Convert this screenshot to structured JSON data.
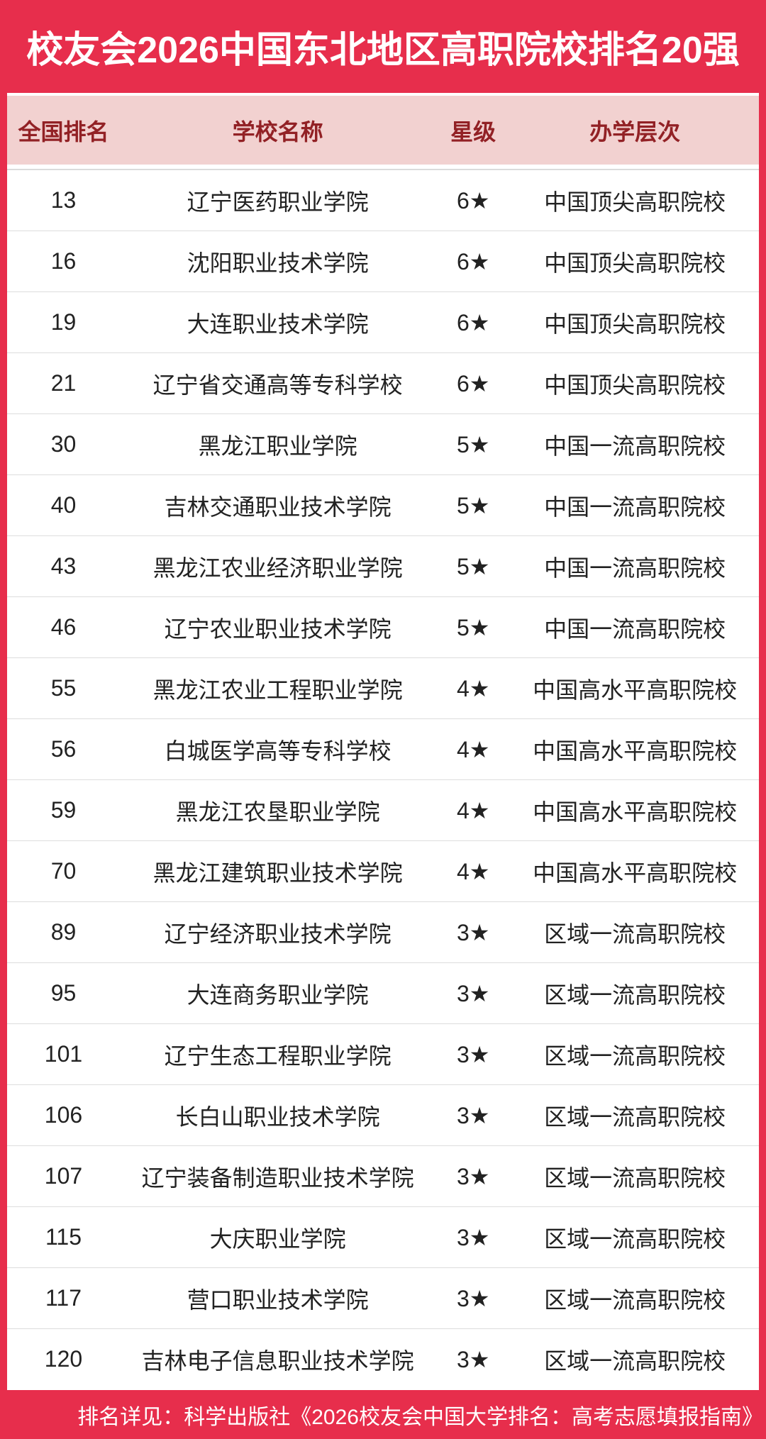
{
  "header": {
    "title": "校友会2026中国东北地区高职院校排名20强"
  },
  "table": {
    "columns": [
      "全国排名",
      "学校名称",
      "星级",
      "办学层次"
    ],
    "rows": [
      {
        "rank": "13",
        "school": "辽宁医药职业学院",
        "star": "6★",
        "level": "中国顶尖高职院校"
      },
      {
        "rank": "16",
        "school": "沈阳职业技术学院",
        "star": "6★",
        "level": "中国顶尖高职院校"
      },
      {
        "rank": "19",
        "school": "大连职业技术学院",
        "star": "6★",
        "level": "中国顶尖高职院校"
      },
      {
        "rank": "21",
        "school": "辽宁省交通高等专科学校",
        "star": "6★",
        "level": "中国顶尖高职院校"
      },
      {
        "rank": "30",
        "school": "黑龙江职业学院",
        "star": "5★",
        "level": "中国一流高职院校"
      },
      {
        "rank": "40",
        "school": "吉林交通职业技术学院",
        "star": "5★",
        "level": "中国一流高职院校"
      },
      {
        "rank": "43",
        "school": "黑龙江农业经济职业学院",
        "star": "5★",
        "level": "中国一流高职院校"
      },
      {
        "rank": "46",
        "school": "辽宁农业职业技术学院",
        "star": "5★",
        "level": "中国一流高职院校"
      },
      {
        "rank": "55",
        "school": "黑龙江农业工程职业学院",
        "star": "4★",
        "level": "中国高水平高职院校"
      },
      {
        "rank": "56",
        "school": "白城医学高等专科学校",
        "star": "4★",
        "level": "中国高水平高职院校"
      },
      {
        "rank": "59",
        "school": "黑龙江农垦职业学院",
        "star": "4★",
        "level": "中国高水平高职院校"
      },
      {
        "rank": "70",
        "school": "黑龙江建筑职业技术学院",
        "star": "4★",
        "level": "中国高水平高职院校"
      },
      {
        "rank": "89",
        "school": "辽宁经济职业技术学院",
        "star": "3★",
        "level": "区域一流高职院校"
      },
      {
        "rank": "95",
        "school": "大连商务职业学院",
        "star": "3★",
        "level": "区域一流高职院校"
      },
      {
        "rank": "101",
        "school": "辽宁生态工程职业学院",
        "star": "3★",
        "level": "区域一流高职院校"
      },
      {
        "rank": "106",
        "school": "长白山职业技术学院",
        "star": "3★",
        "level": "区域一流高职院校"
      },
      {
        "rank": "107",
        "school": "辽宁装备制造职业技术学院",
        "star": "3★",
        "level": "区域一流高职院校"
      },
      {
        "rank": "115",
        "school": "大庆职业学院",
        "star": "3★",
        "level": "区域一流高职院校"
      },
      {
        "rank": "117",
        "school": "营口职业技术学院",
        "star": "3★",
        "level": "区域一流高职院校"
      },
      {
        "rank": "120",
        "school": "吉林电子信息职业技术学院",
        "star": "3★",
        "level": "区域一流高职院校"
      }
    ]
  },
  "footer": {
    "note": "排名详见：科学出版社《2026校友会中国大学排名：高考志愿填报指南》"
  },
  "colors": {
    "primary_red": "#E72E4C",
    "header_pink": "#F2D1D0",
    "header_text_red": "#922125",
    "row_text": "#222222",
    "divider": "#DDDDDD"
  },
  "chart_data": {
    "type": "table",
    "title": "校友会2026中国东北地区高职院校排名20强",
    "columns": [
      "全国排名",
      "学校名称",
      "星级",
      "办学层次"
    ],
    "rows": [
      [
        13,
        "辽宁医药职业学院",
        "6★",
        "中国顶尖高职院校"
      ],
      [
        16,
        "沈阳职业技术学院",
        "6★",
        "中国顶尖高职院校"
      ],
      [
        19,
        "大连职业技术学院",
        "6★",
        "中国顶尖高职院校"
      ],
      [
        21,
        "辽宁省交通高等专科学校",
        "6★",
        "中国顶尖高职院校"
      ],
      [
        30,
        "黑龙江职业学院",
        "5★",
        "中国一流高职院校"
      ],
      [
        40,
        "吉林交通职业技术学院",
        "5★",
        "中国一流高职院校"
      ],
      [
        43,
        "黑龙江农业经济职业学院",
        "5★",
        "中国一流高职院校"
      ],
      [
        46,
        "辽宁农业职业技术学院",
        "5★",
        "中国一流高职院校"
      ],
      [
        55,
        "黑龙江农业工程职业学院",
        "4★",
        "中国高水平高职院校"
      ],
      [
        56,
        "白城医学高等专科学校",
        "4★",
        "中国高水平高职院校"
      ],
      [
        59,
        "黑龙江农垦职业学院",
        "4★",
        "中国高水平高职院校"
      ],
      [
        70,
        "黑龙江建筑职业技术学院",
        "4★",
        "中国高水平高职院校"
      ],
      [
        89,
        "辽宁经济职业技术学院",
        "3★",
        "区域一流高职院校"
      ],
      [
        95,
        "大连商务职业学院",
        "3★",
        "区域一流高职院校"
      ],
      [
        101,
        "辽宁生态工程职业学院",
        "3★",
        "区域一流高职院校"
      ],
      [
        106,
        "长白山职业技术学院",
        "3★",
        "区域一流高职院校"
      ],
      [
        107,
        "辽宁装备制造职业技术学院",
        "3★",
        "区域一流高职院校"
      ],
      [
        115,
        "大庆职业学院",
        "3★",
        "区域一流高职院校"
      ],
      [
        117,
        "营口职业技术学院",
        "3★",
        "区域一流高职院校"
      ],
      [
        120,
        "吉林电子信息职业技术学院",
        "3★",
        "区域一流高职院校"
      ]
    ],
    "footnote": "排名详见：科学出版社《2026校友会中国大学排名：高考志愿填报指南》"
  }
}
